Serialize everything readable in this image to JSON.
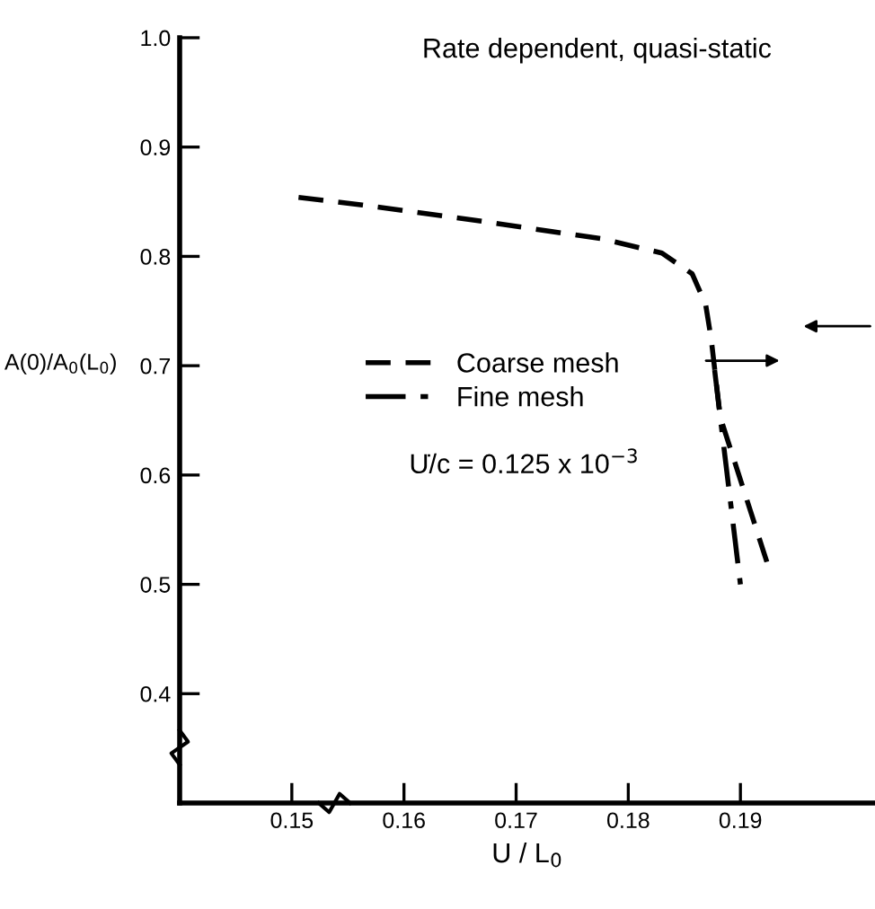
{
  "chart_data": {
    "type": "line",
    "title": "Rate dependent, quasi-static",
    "xlabel": "U / L$_{0}$",
    "ylabel": "A(0)/A$_{0}$(L$_{0}$)",
    "annotations": [
      "U̇/c = 0.125 x 10$^{−3}$"
    ],
    "series": [
      {
        "name": "Coarse mesh",
        "color": "#000000",
        "line_style": "dashed",
        "x": [
          0.1506,
          0.1563,
          0.167,
          0.1777,
          0.183,
          0.1857,
          0.1869,
          0.1874,
          0.1882,
          0.1925
        ],
        "values": [
          0.854,
          0.847,
          0.832,
          0.816,
          0.803,
          0.784,
          0.756,
          0.724,
          0.653,
          0.516
        ]
      },
      {
        "name": "Fine mesh",
        "color": "#000000",
        "line_style": "dashdot",
        "x": [
          0.1877,
          0.1882,
          0.19
        ],
        "values": [
          0.696,
          0.653,
          0.5
        ]
      }
    ],
    "xlim": [
      0.14,
      0.202
    ],
    "ylim": [
      0.3,
      1.0
    ],
    "xticks": [
      0.15,
      0.16,
      0.17,
      0.18,
      0.19
    ],
    "yticks": [
      {
        "value": 0.4,
        "label": "0.4"
      },
      {
        "value": 0.5,
        "label": "0.5"
      },
      {
        "value": 0.6,
        "label": "0.6"
      },
      {
        "value": 0.7,
        "label": "0.7"
      },
      {
        "value": 0.8,
        "label": "0.8"
      },
      {
        "value": 0.9,
        "label": "0.9"
      },
      {
        "value": 1.0,
        "label": "1.0"
      }
    ],
    "grid": false,
    "legend": "center",
    "marker": "none"
  }
}
